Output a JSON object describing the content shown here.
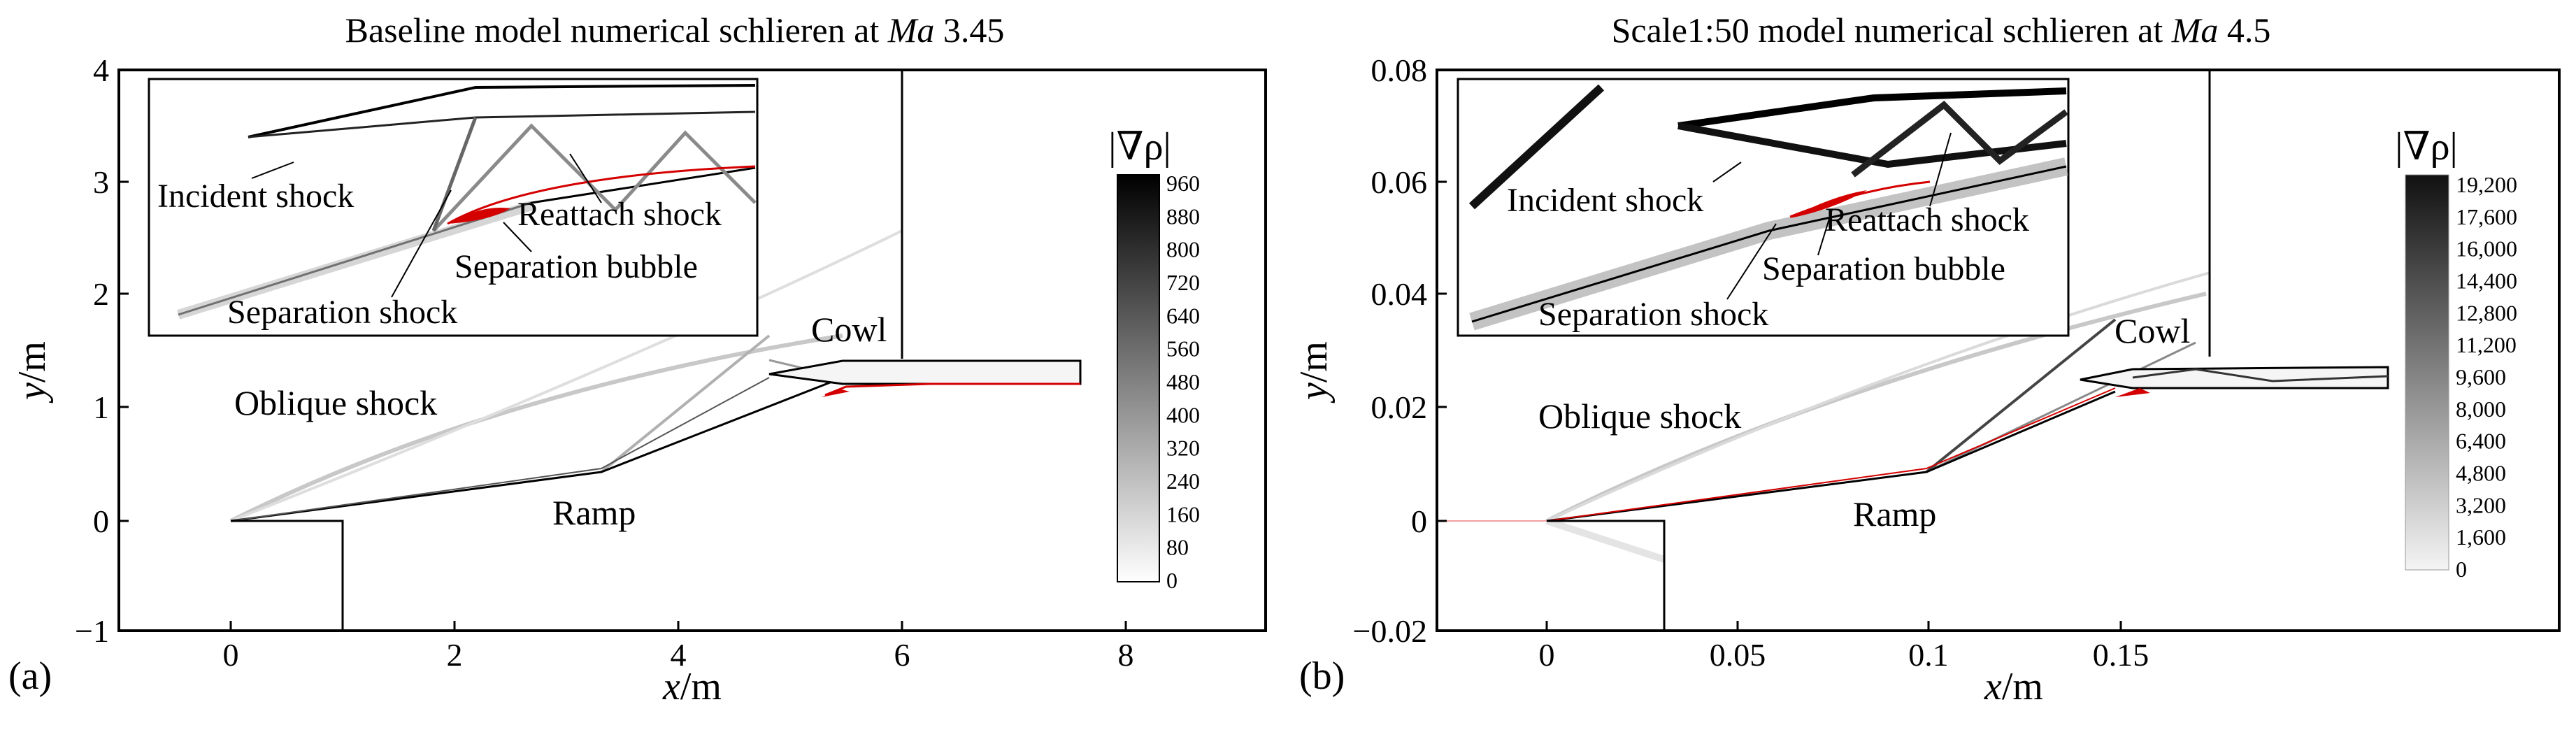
{
  "panels": [
    {
      "id": "a",
      "label": "(a)",
      "title_prefix": "Baseline model numerical schlieren at ",
      "title_ma": "Ma",
      "title_value": " 3.45",
      "x_ticks": [
        "0",
        "2",
        "4",
        "6",
        "8"
      ],
      "y_ticks": [
        "4",
        "3",
        "2",
        "1",
        "0",
        "−1"
      ],
      "xlabel_var": "x",
      "xlabel_unit": "/m",
      "ylabel_var": "y",
      "ylabel_unit": "/m",
      "annotations": {
        "oblique_shock": "Oblique shock",
        "ramp": "Ramp",
        "cowl": "Cowl"
      },
      "inset": {
        "incident_shock": "Incident shock",
        "reattach_shock": "Reattach shock",
        "separation_bubble": "Separation bubble",
        "separation_shock": "Separation shock"
      },
      "colorbar": {
        "title": "|∇ρ|",
        "ticks": [
          "960",
          "880",
          "800",
          "720",
          "640",
          "560",
          "480",
          "400",
          "320",
          "240",
          "160",
          "80",
          "0"
        ]
      }
    },
    {
      "id": "b",
      "label": "(b)",
      "title_prefix": "Scale1:50 model numerical schlieren at ",
      "title_ma": "Ma",
      "title_value": " 4.5",
      "x_ticks": [
        "0",
        "0.05",
        "0.1",
        "0.15"
      ],
      "y_ticks": [
        "0.08",
        "0.06",
        "0.04",
        "0.02",
        "0",
        "−0.02"
      ],
      "xlabel_var": "x",
      "xlabel_unit": "/m",
      "ylabel_var": "y",
      "ylabel_unit": "/m",
      "annotations": {
        "oblique_shock": "Oblique shock",
        "ramp": "Ramp",
        "cowl": "Cowl"
      },
      "inset": {
        "incident_shock": "Incident shock",
        "reattach_shock": "Reattach shock",
        "separation_bubble": "Separation bubble",
        "separation_shock": "Separation shock"
      },
      "colorbar": {
        "title": "|∇ρ|",
        "ticks": [
          "19,200",
          "17,600",
          "16,000",
          "14,400",
          "12,800",
          "11,200",
          "9,600",
          "8,000",
          "6,400",
          "4,800",
          "3,200",
          "1,600",
          "0"
        ]
      }
    }
  ]
}
